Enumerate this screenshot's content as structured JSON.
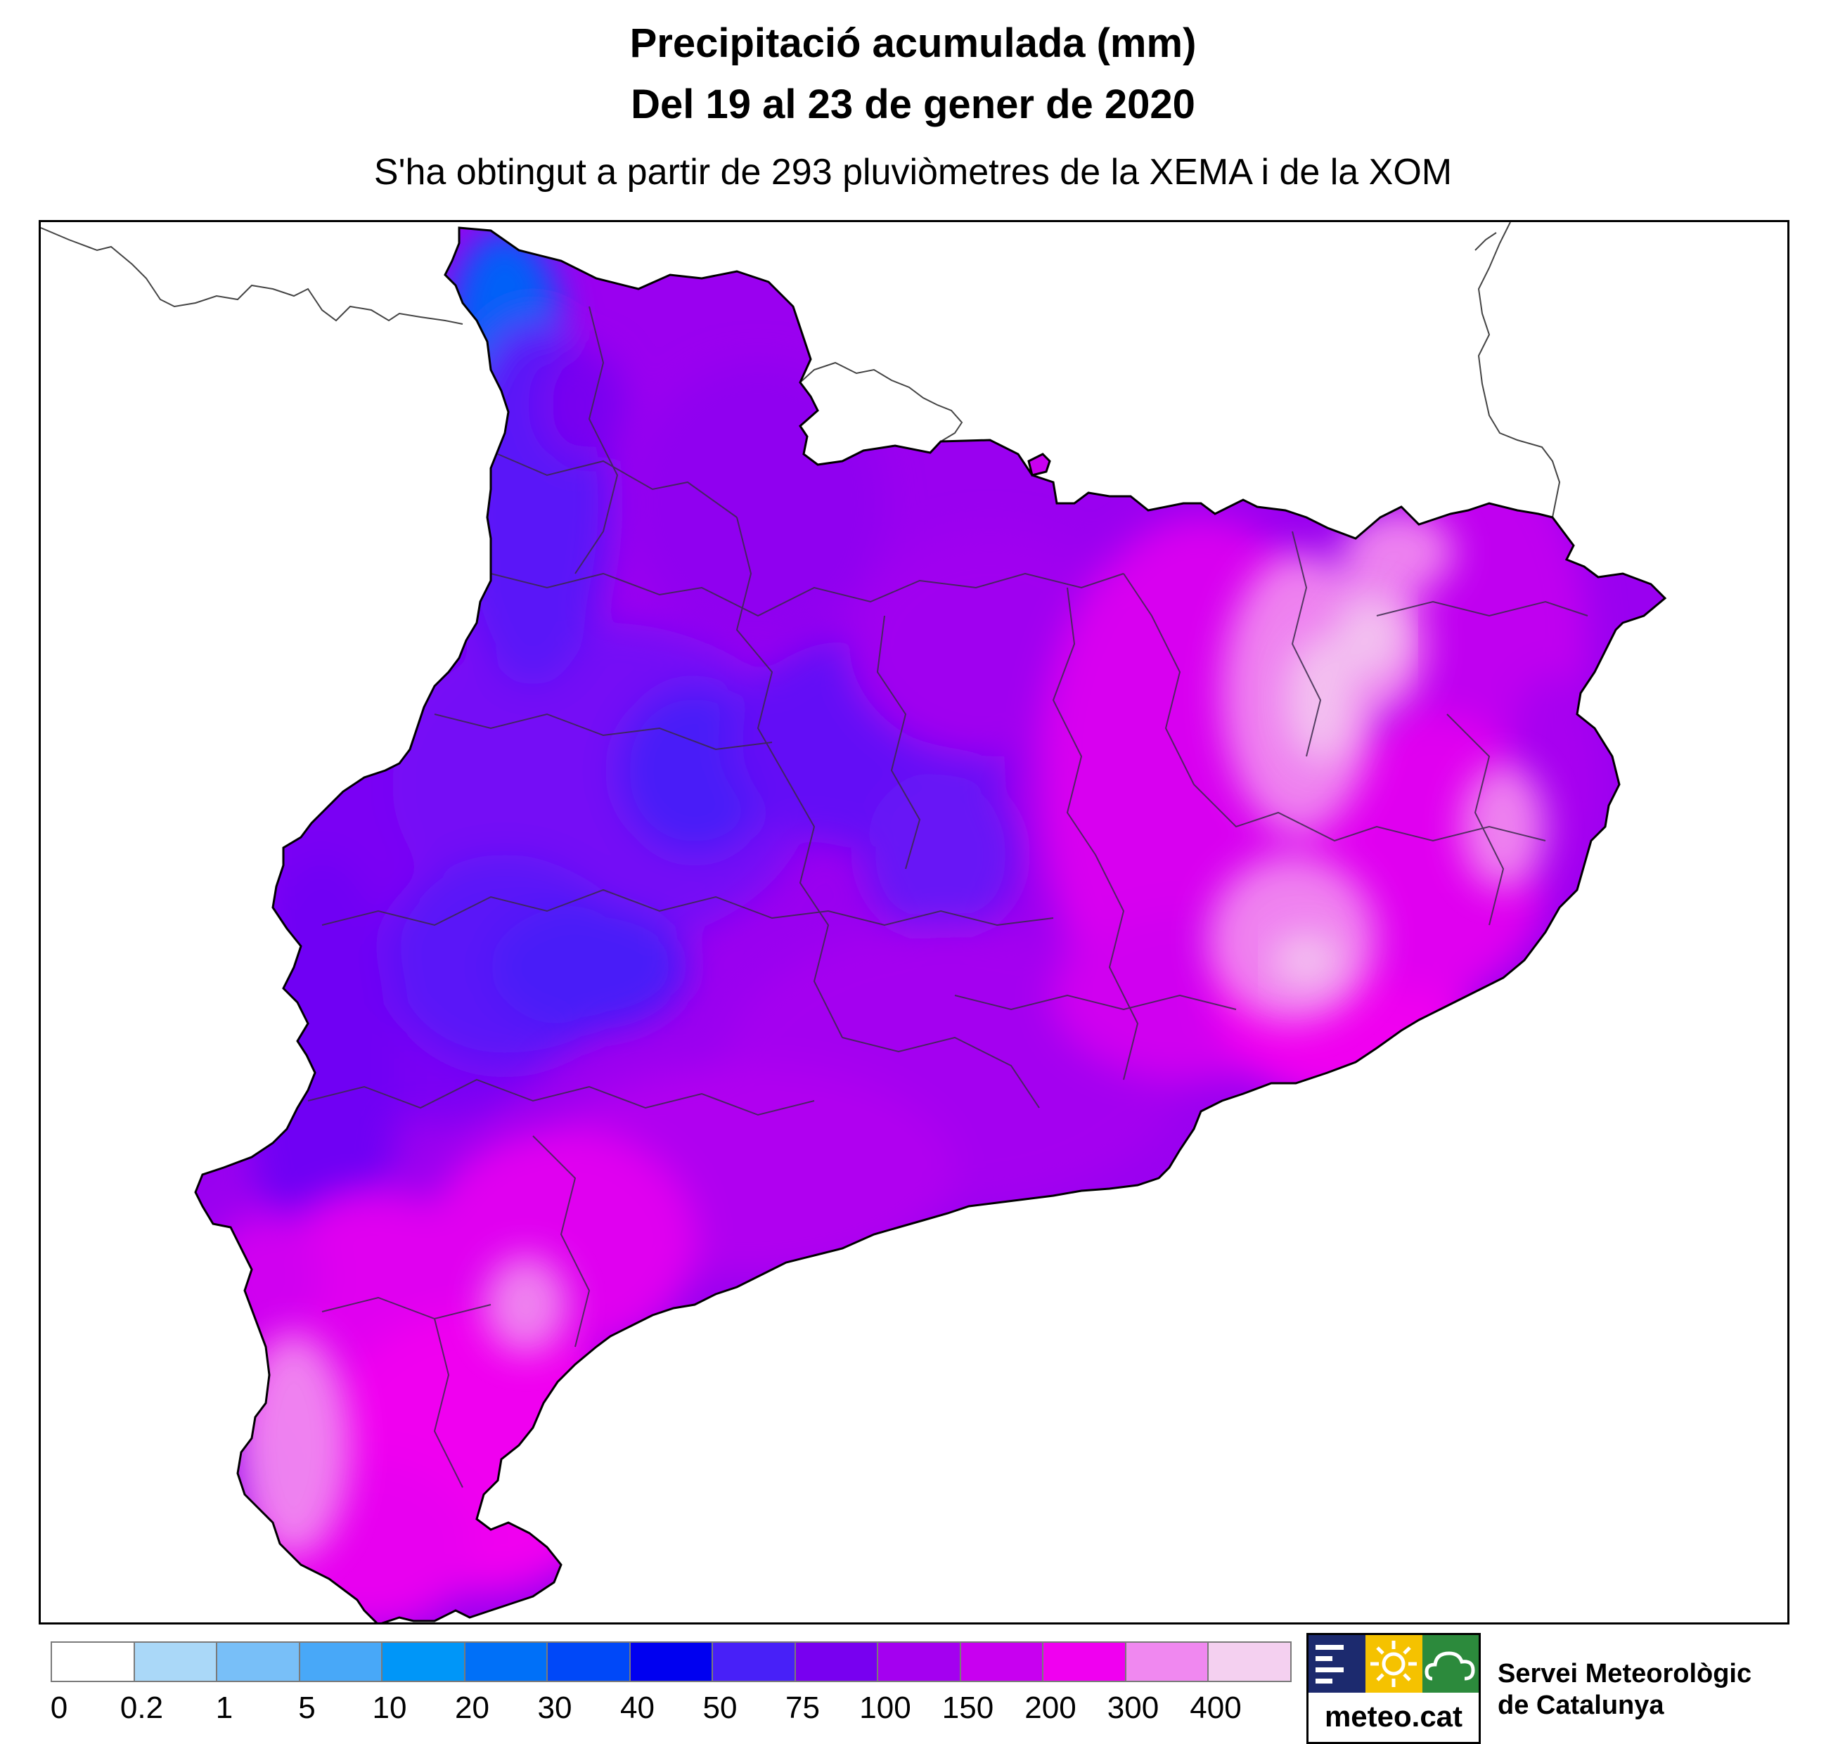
{
  "header": {
    "title_line1": "Precipitació acumulada (mm)",
    "title_line2": "Del 19 al 23 de gener de 2020",
    "subtitle": "S'ha obtingut a partir de 293 pluviòmetres de la XEMA i de la XOM"
  },
  "legend": {
    "colors": [
      "#ffffff",
      "#aad8f8",
      "#78bff8",
      "#48a8f8",
      "#0096f8",
      "#0070f8",
      "#0048f8",
      "#0000f0",
      "#4820f8",
      "#7800f0",
      "#a400f0",
      "#c800f0",
      "#f000f0",
      "#f088f0",
      "#f4d0f0"
    ],
    "ticks": [
      "0",
      "0.2",
      "1",
      "5",
      "10",
      "20",
      "30",
      "40",
      "50",
      "75",
      "100",
      "150",
      "200",
      "300",
      "400"
    ]
  },
  "branding": {
    "logo_text": "meteo.cat",
    "org_line1": "Servei Meteorològic",
    "org_line2": "de Catalunya",
    "colors": {
      "navy": "#1c2a6e",
      "yellow": "#f5c200",
      "green": "#2c8a3c"
    }
  }
}
